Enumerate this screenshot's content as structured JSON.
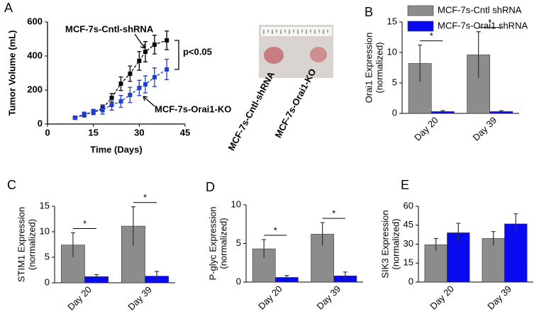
{
  "chart_data": [
    {
      "type": "line",
      "panel_label": "A",
      "xlabel": "Time (Days)",
      "ylabel": "Tumor Volume (mL)",
      "xlim": [
        0,
        45
      ],
      "xticks": [
        0,
        15,
        30,
        45
      ],
      "ylim": [
        0,
        600
      ],
      "yticks": [
        0,
        200,
        400,
        600
      ],
      "x": [
        9,
        12,
        15,
        18,
        21,
        24,
        27,
        30,
        32,
        35,
        39
      ],
      "series": [
        {
          "name": "MCF-7s-Cntl-shRNA",
          "color": "#000000",
          "values": [
            37,
            54,
            71,
            92,
            154,
            237,
            296,
            371,
            425,
            467,
            492
          ],
          "errors": [
            8,
            12,
            15,
            20,
            25,
            40,
            45,
            55,
            60,
            55,
            55
          ]
        },
        {
          "name": "MCF-7s-Orai1-KO",
          "color": "#1f3fd0",
          "values": [
            37,
            58,
            71,
            83,
            112,
            133,
            171,
            212,
            233,
            275,
            321
          ],
          "errors": [
            8,
            12,
            15,
            25,
            30,
            35,
            45,
            45,
            50,
            55,
            60
          ]
        }
      ],
      "annotation": "p<0.05",
      "image_labels": [
        "MCF-7s-Cntl-shRNA",
        "MCF-7s-Orai1-KO"
      ]
    },
    {
      "type": "bar",
      "panel_label": "B",
      "ylabel": [
        "Orai1 Expression",
        "(normalized)"
      ],
      "categories": [
        "Day 20",
        "Day 39"
      ],
      "ylim": [
        0,
        15
      ],
      "yticks": [
        0,
        5,
        10,
        15
      ],
      "legend": true,
      "series": [
        {
          "name": "MCF-7s-Cntl shRNA",
          "color": "#8c8c8c",
          "values": [
            8.2,
            9.6
          ],
          "errors": [
            3.0,
            3.8
          ]
        },
        {
          "name": "MCF-7s-Orai1 shRNA",
          "color": "#0a0af0",
          "values": [
            0.3,
            0.3
          ],
          "errors": [
            0.15,
            0.15
          ]
        }
      ],
      "significance": [
        "*",
        "*"
      ]
    },
    {
      "type": "bar",
      "panel_label": "C",
      "ylabel": [
        "STIM1 Expression",
        "(normalized)"
      ],
      "categories": [
        "Day 20",
        "Day 39"
      ],
      "ylim": [
        0,
        15
      ],
      "yticks": [
        0,
        5,
        10,
        15
      ],
      "legend": false,
      "series": [
        {
          "color": "#8c8c8c",
          "values": [
            7.4,
            11.1
          ],
          "errors": [
            2.4,
            3.8
          ]
        },
        {
          "color": "#0a0af0",
          "values": [
            1.2,
            1.3
          ],
          "errors": [
            0.4,
            0.9
          ]
        }
      ],
      "significance": [
        "*",
        "*"
      ]
    },
    {
      "type": "bar",
      "panel_label": "D",
      "ylabel": [
        "P-glyc Expression",
        "(normalized)"
      ],
      "categories": [
        "Day 20",
        "Day 39"
      ],
      "ylim": [
        0,
        10
      ],
      "yticks": [
        0,
        5,
        10
      ],
      "legend": false,
      "series": [
        {
          "color": "#8c8c8c",
          "values": [
            4.3,
            6.2
          ],
          "errors": [
            1.2,
            1.5
          ]
        },
        {
          "color": "#0a0af0",
          "values": [
            0.6,
            0.8
          ],
          "errors": [
            0.25,
            0.5
          ]
        }
      ],
      "significance": [
        "*",
        "*"
      ]
    },
    {
      "type": "bar",
      "panel_label": "E",
      "ylabel": [
        "SIK3 Expression",
        "(normalized)"
      ],
      "categories": [
        "Day 20",
        "Day 39"
      ],
      "ylim": [
        0,
        60
      ],
      "yticks": [
        0,
        15,
        30,
        45,
        60
      ],
      "legend": false,
      "series": [
        {
          "color": "#8c8c8c",
          "values": [
            29.5,
            34.5
          ],
          "errors": [
            5,
            5.5
          ]
        },
        {
          "color": "#0a0af0",
          "values": [
            39,
            46
          ],
          "errors": [
            7.5,
            8
          ]
        }
      ]
    }
  ]
}
